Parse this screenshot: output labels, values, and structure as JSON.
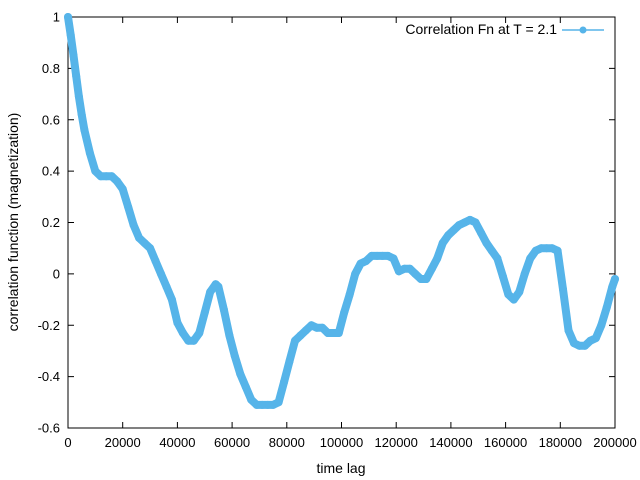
{
  "chart_data": {
    "type": "line",
    "xlabel": "time lag",
    "ylabel": "correlation function (magnetization)",
    "xlim": [
      0,
      200000
    ],
    "ylim": [
      -0.6,
      1
    ],
    "xticks": [
      0,
      20000,
      40000,
      60000,
      80000,
      100000,
      120000,
      140000,
      160000,
      180000,
      200000
    ],
    "xtick_labels": [
      "0",
      "20000",
      "40000",
      "60000",
      "80000",
      "100000",
      "120000",
      "140000",
      "160000",
      "180000",
      "200000"
    ],
    "yticks": [
      -0.6,
      -0.4,
      -0.2,
      0,
      0.2,
      0.4,
      0.6,
      0.8,
      1
    ],
    "ytick_labels": [
      "-0.6",
      "-0.4",
      "-0.2",
      "0",
      "0.2",
      "0.4",
      "0.6",
      "0.8",
      "1"
    ],
    "grid": false,
    "legend": {
      "placement": "top-right"
    },
    "series": [
      {
        "name": "Correlation Fn at T = 2.1",
        "color": "#56b4e9",
        "marker": "filled-circle",
        "x": [
          0,
          1000,
          2000,
          3000,
          4000,
          5000,
          6000,
          8000,
          10000,
          12000,
          14000,
          16000,
          18000,
          20000,
          22000,
          24000,
          26000,
          28000,
          30000,
          32000,
          34000,
          36000,
          38000,
          40000,
          42000,
          44000,
          46000,
          48000,
          50000,
          52000,
          54000,
          55000,
          57000,
          59000,
          61000,
          63000,
          65000,
          67000,
          69000,
          71000,
          73000,
          75000,
          77000,
          79000,
          81000,
          83000,
          85000,
          87000,
          89000,
          91000,
          93000,
          95000,
          97000,
          99000,
          101000,
          103000,
          105000,
          107000,
          109000,
          111000,
          113000,
          115000,
          117000,
          119000,
          121000,
          123000,
          125000,
          127000,
          129000,
          131000,
          133000,
          135000,
          137000,
          139000,
          141000,
          143000,
          145000,
          147000,
          149000,
          151000,
          153000,
          155000,
          157000,
          159000,
          161000,
          163000,
          165000,
          167000,
          169000,
          171000,
          173000,
          175000,
          177000,
          179000,
          181000,
          183000,
          185000,
          187000,
          189000,
          191000,
          193000,
          195000,
          197000,
          199000,
          200000
        ],
        "y": [
          1.0,
          0.93,
          0.85,
          0.77,
          0.69,
          0.62,
          0.56,
          0.47,
          0.4,
          0.38,
          0.38,
          0.38,
          0.36,
          0.33,
          0.26,
          0.19,
          0.14,
          0.12,
          0.1,
          0.05,
          0.0,
          -0.05,
          -0.1,
          -0.19,
          -0.23,
          -0.26,
          -0.26,
          -0.23,
          -0.15,
          -0.07,
          -0.04,
          -0.05,
          -0.14,
          -0.24,
          -0.32,
          -0.39,
          -0.44,
          -0.49,
          -0.51,
          -0.51,
          -0.51,
          -0.51,
          -0.5,
          -0.42,
          -0.34,
          -0.26,
          -0.24,
          -0.22,
          -0.2,
          -0.21,
          -0.21,
          -0.23,
          -0.23,
          -0.23,
          -0.15,
          -0.08,
          0.0,
          0.04,
          0.05,
          0.07,
          0.07,
          0.07,
          0.07,
          0.06,
          0.01,
          0.02,
          0.02,
          0.0,
          -0.02,
          -0.02,
          0.02,
          0.06,
          0.12,
          0.15,
          0.17,
          0.19,
          0.2,
          0.21,
          0.2,
          0.16,
          0.12,
          0.09,
          0.06,
          -0.01,
          -0.08,
          -0.1,
          -0.07,
          0.0,
          0.06,
          0.09,
          0.1,
          0.1,
          0.1,
          0.09,
          -0.06,
          -0.22,
          -0.27,
          -0.28,
          -0.28,
          -0.26,
          -0.25,
          -0.2,
          -0.13,
          -0.05,
          -0.02
        ]
      }
    ]
  }
}
